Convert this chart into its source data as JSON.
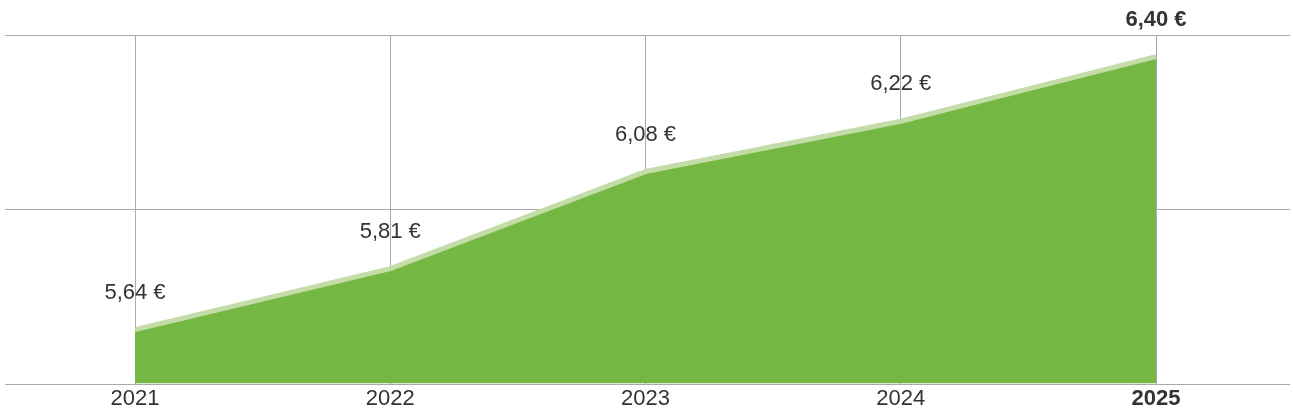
{
  "chart_data": {
    "type": "area",
    "categories": [
      "2021",
      "2022",
      "2023",
      "2024",
      "2025"
    ],
    "series": [
      {
        "color": "#74b743",
        "values": [
          5.64,
          5.81,
          6.08,
          6.22,
          6.4
        ],
        "value_labels": [
          "5,64 €",
          "5,81 €",
          "6,08 €",
          "6,22 €",
          "6,40 €"
        ]
      }
    ],
    "ylim": [
      5.49,
      6.46
    ],
    "yticks": [
      {
        "value": 5.49,
        "label": null
      },
      {
        "value": 5.975,
        "label": null
      },
      {
        "value": 6.46,
        "label": null
      }
    ],
    "grid": true,
    "tick_labels": "x",
    "legend": false
  }
}
